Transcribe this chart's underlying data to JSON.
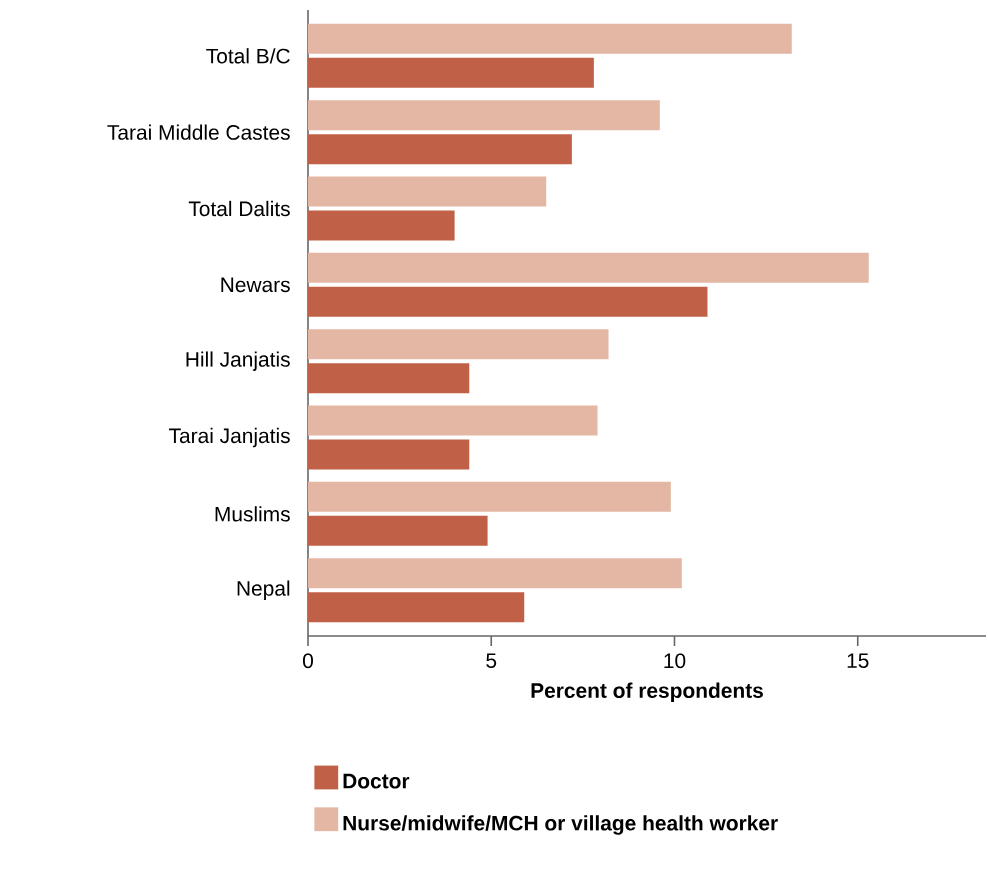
{
  "chart_data": {
    "type": "bar",
    "orientation": "horizontal",
    "xlabel": "Percent of respondents",
    "categories": [
      "Total B/C",
      "Tarai Middle Castes",
      "Total Dalits",
      "Newars",
      "Hill Janjatis",
      "Tarai Janjatis",
      "Muslims",
      "Nepal"
    ],
    "series": [
      {
        "name": "Doctor",
        "color": "#c06046",
        "values": [
          7.8,
          7.2,
          4.0,
          10.9,
          4.4,
          4.4,
          4.9,
          5.9
        ]
      },
      {
        "name": "Nurse/midwife/MCH or village health worker",
        "color": "#e3b7a4",
        "values": [
          13.2,
          9.6,
          6.5,
          15.3,
          8.2,
          7.9,
          9.9,
          10.2
        ]
      }
    ],
    "xlim": [
      0,
      18.5
    ],
    "xticks": [
      0,
      5,
      10,
      15
    ],
    "legend": "bottom",
    "grid": false
  }
}
